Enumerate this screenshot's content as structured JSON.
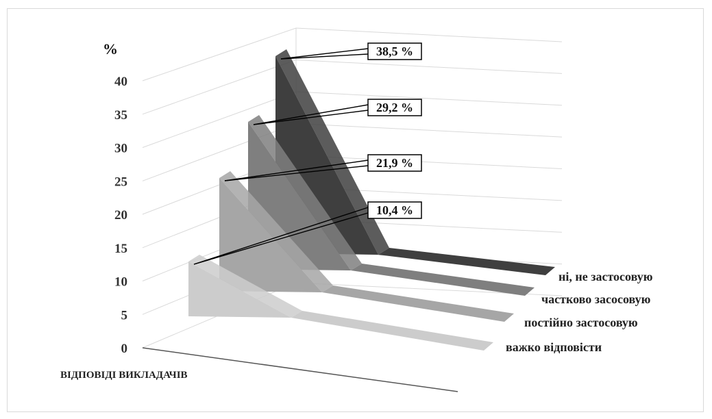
{
  "chart_data": {
    "type": "area",
    "subtype": "3d-area",
    "y_unit": "%",
    "xlabel": "ВІДПОВІДІ ВИКЛАДАЧІВ",
    "ylim": [
      0,
      40
    ],
    "y_ticks": [
      "0",
      "5",
      "10",
      "15",
      "20",
      "25",
      "30",
      "35",
      "40"
    ],
    "series": [
      {
        "name": "важко відповісти",
        "value": 10.4,
        "label": "10,4 %",
        "color": "#cccccc"
      },
      {
        "name": "постійно застосовую",
        "value": 21.9,
        "label": "21,9 %",
        "color": "#a6a6a6"
      },
      {
        "name": "частково засосовую",
        "value": 29.2,
        "label": "29,2 %",
        "color": "#7f7f7f"
      },
      {
        "name": "ні, не застосовую",
        "value": 38.5,
        "label": "38,5 %",
        "color": "#3f3f3f"
      }
    ],
    "grid": true
  }
}
